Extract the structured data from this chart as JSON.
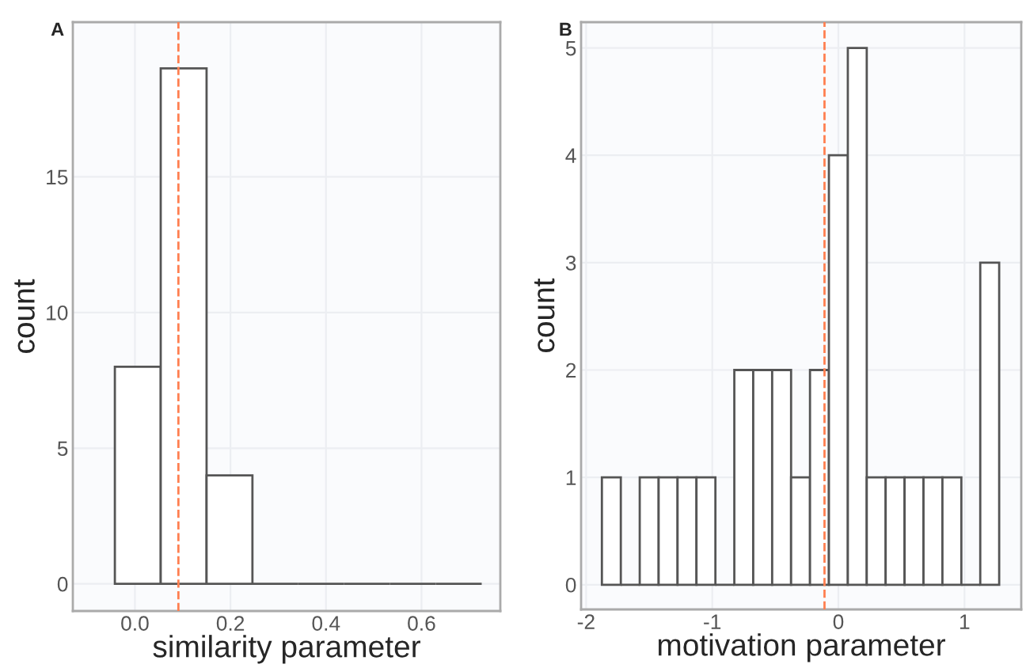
{
  "chart_data": [
    {
      "type": "histogram",
      "title": "A",
      "xlabel": "similarity parameter",
      "ylabel": "count",
      "bins": [
        -0.042,
        0.054,
        0.15,
        0.246,
        0.342,
        0.438,
        0.534,
        0.63,
        0.726
      ],
      "values": [
        8,
        19,
        4,
        0,
        0,
        0,
        0,
        0
      ],
      "color": "#555555",
      "xlim": [
        -0.13,
        0.765
      ],
      "xticks": [
        {
          "value": 0,
          "label": "0.0"
        },
        0.2,
        0.4,
        0.6
      ],
      "ylim": [
        -1.0,
        20.7
      ],
      "yticks": [
        0,
        5,
        10,
        15
      ],
      "grid": true,
      "ref_lines": [
        {
          "axis": "x",
          "value": 0.091,
          "color": "#ff7f50",
          "line_style": "dashed"
        }
      ]
    },
    {
      "type": "histogram",
      "title": "B",
      "xlabel": "motivation parameter",
      "ylabel": "count",
      "bins": [
        -1.875,
        -1.725,
        -1.575,
        -1.425,
        -1.275,
        -1.125,
        -0.975,
        -0.825,
        -0.675,
        -0.525,
        -0.375,
        -0.225,
        -0.075,
        0.075,
        0.225,
        0.375,
        0.525,
        0.675,
        0.825,
        0.975,
        1.125,
        1.275
      ],
      "values": [
        1,
        0,
        1,
        1,
        1,
        1,
        0,
        2,
        2,
        2,
        1,
        2,
        4,
        5,
        1,
        1,
        1,
        1,
        1,
        0,
        3
      ],
      "color": "#555555",
      "xlim": [
        -2.04,
        1.45
      ],
      "xticks": [
        -2,
        -1,
        0,
        1
      ],
      "ylim": [
        -0.23,
        5.24
      ],
      "yticks": [
        0,
        1,
        2,
        3,
        4,
        5
      ],
      "grid": true,
      "ref_lines": [
        {
          "axis": "x",
          "value": -0.11,
          "color": "#ff7f50",
          "line_style": "dashed"
        }
      ]
    }
  ]
}
